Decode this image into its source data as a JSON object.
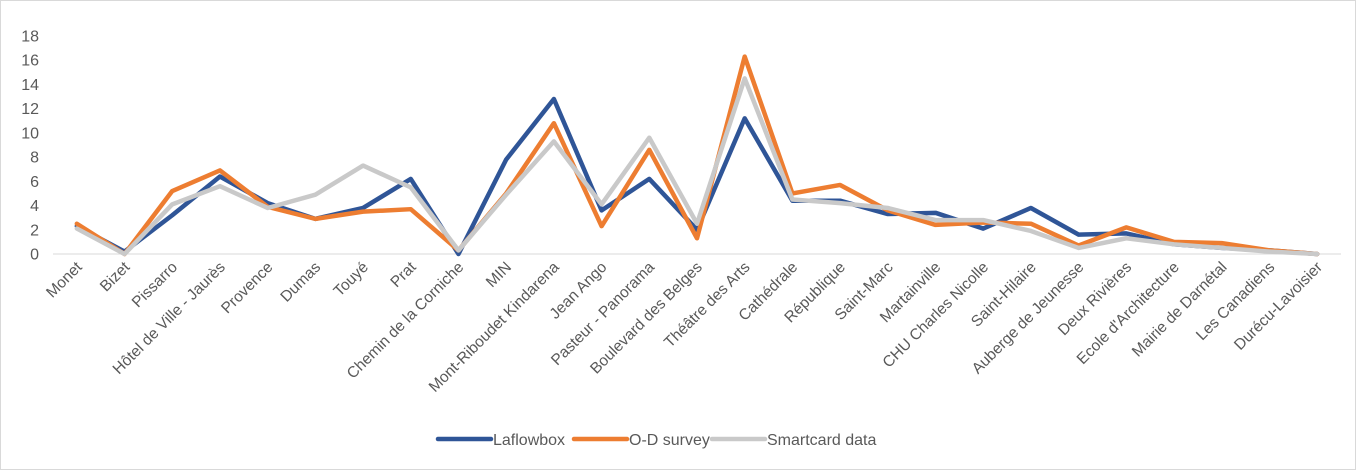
{
  "chart_data": {
    "type": "line",
    "title": "",
    "xlabel": "",
    "ylabel": "",
    "ylim": [
      0,
      18
    ],
    "yticks": [
      0,
      2,
      4,
      6,
      8,
      10,
      12,
      14,
      16,
      18
    ],
    "grid": false,
    "legend_position": "bottom",
    "categories": [
      "Monet",
      "Bizet",
      "Pissarro",
      "Hôtel de Ville - Jaurès",
      "Provence",
      "Dumas",
      "Touyé",
      "Prat",
      "Chemin de la Corniche",
      "MIN",
      "Mont-Riboudet Kindarena",
      "Jean Ango",
      "Pasteur - Panorama",
      "Boulevard des Belges",
      "Théâtre des Arts",
      "Cathédrale",
      "République",
      "Saint-Marc",
      "Martainville",
      "CHU Charles Nicolle",
      "Saint-Hilaire",
      "Auberge de Jeunesse",
      "Deux Rivières",
      "Ecole d'Architecture",
      "Mairie de Darnétal",
      "Les Canadiens",
      "Durécu-Lavoisier"
    ],
    "series": [
      {
        "name": "Laflowbox",
        "color": "#2f5597",
        "values": [
          2.3,
          0.2,
          3.2,
          6.4,
          4.2,
          2.9,
          3.8,
          6.2,
          0.0,
          7.8,
          12.8,
          3.6,
          6.2,
          2.0,
          11.2,
          4.4,
          4.4,
          3.3,
          3.4,
          2.1,
          3.8,
          1.6,
          1.7,
          0.8,
          0.5,
          0.3,
          0.0
        ]
      },
      {
        "name": "O-D survey",
        "color": "#ed7d31",
        "values": [
          2.5,
          0.0,
          5.2,
          6.9,
          3.9,
          2.9,
          3.5,
          3.7,
          0.3,
          5.0,
          10.8,
          2.3,
          8.6,
          1.3,
          16.3,
          5.0,
          5.7,
          3.6,
          2.4,
          2.6,
          2.5,
          0.7,
          2.2,
          1.0,
          0.9,
          0.3,
          0.0
        ]
      },
      {
        "name": "Smartcard data",
        "color": "#c9c9c9",
        "values": [
          2.1,
          0.0,
          4.1,
          5.6,
          3.8,
          4.9,
          7.3,
          5.5,
          0.3,
          4.9,
          9.3,
          4.1,
          9.6,
          2.5,
          14.5,
          4.5,
          4.2,
          3.8,
          2.8,
          2.8,
          1.9,
          0.5,
          1.3,
          0.8,
          0.5,
          0.2,
          0.0
        ]
      }
    ]
  }
}
